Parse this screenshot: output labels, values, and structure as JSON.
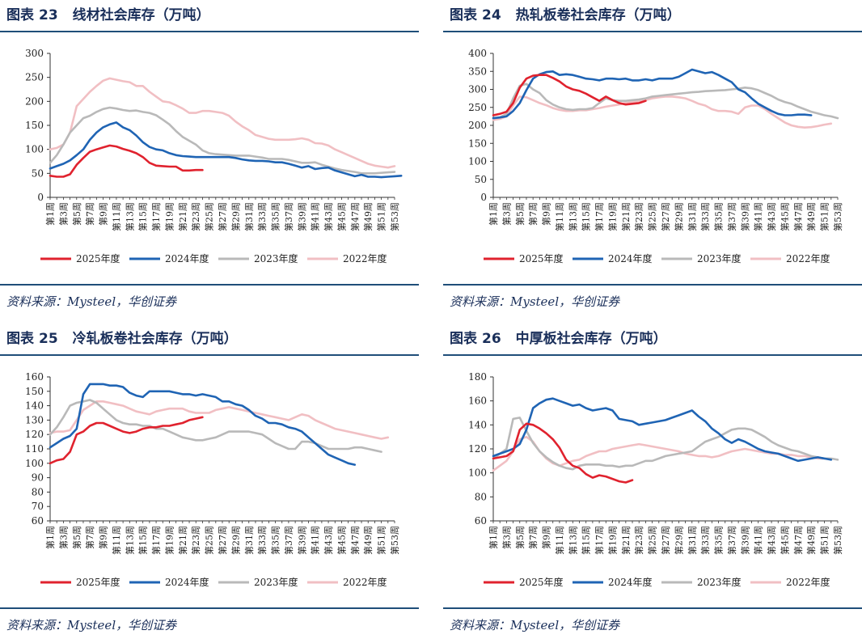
{
  "series_names": [
    "2025年度",
    "2024年度",
    "2023年度",
    "2022年度"
  ],
  "series_colors": [
    "#e0222e",
    "#1f64b4",
    "#b9b9b9",
    "#f1bfc3"
  ],
  "x_tick_labels": [
    "第1周",
    "第3周",
    "第5周",
    "第7周",
    "第9周",
    "第11周",
    "第13周",
    "第15周",
    "第17周",
    "第19周",
    "第21周",
    "第23周",
    "第25周",
    "第27周",
    "第29周",
    "第31周",
    "第33周",
    "第35周",
    "第37周",
    "第39周",
    "第41周",
    "第43周",
    "第45周",
    "第47周",
    "第49周",
    "第51周",
    "第53周"
  ],
  "panels": [
    {
      "label": "图表",
      "number": "23",
      "title": "线材社会库存（万吨）",
      "source": "资料来源：Mysteel，华创证券"
    },
    {
      "label": "图表",
      "number": "24",
      "title": "热轧板卷社会库存（万吨）",
      "source": "资料来源：Mysteel，华创证券"
    },
    {
      "label": "图表",
      "number": "25",
      "title": "冷轧板卷社会库存（万吨）",
      "source": "资料来源：Mysteel，华创证券"
    },
    {
      "label": "图表",
      "number": "26",
      "title": "中厚板社会库存（万吨）",
      "source": "资料来源：Mysteel，华创证券"
    }
  ],
  "chart_data": [
    {
      "type": "line",
      "title": "线材社会库存（万吨）",
      "x": "周 1-53",
      "ylim": [
        0,
        300
      ],
      "yticks": [
        0,
        50,
        100,
        150,
        200,
        250,
        300
      ],
      "series": [
        {
          "name": "2025年度",
          "values": [
            45,
            43,
            43,
            48,
            68,
            82,
            95,
            100,
            104,
            108,
            106,
            101,
            97,
            92,
            84,
            72,
            66,
            65,
            64,
            64,
            56,
            56,
            57,
            57
          ]
        },
        {
          "name": "2024年度",
          "values": [
            60,
            65,
            70,
            77,
            88,
            100,
            120,
            135,
            146,
            152,
            156,
            146,
            140,
            129,
            115,
            105,
            100,
            98,
            92,
            88,
            86,
            85,
            84,
            84,
            84,
            84,
            84,
            84,
            82,
            79,
            77,
            76,
            76,
            75,
            73,
            73,
            70,
            66,
            62,
            65,
            59,
            61,
            62,
            56,
            52,
            48,
            44,
            47,
            43,
            43,
            42,
            43,
            44,
            45
          ]
        },
        {
          "name": "2023年度",
          "values": [
            72,
            88,
            110,
            135,
            150,
            165,
            170,
            178,
            184,
            187,
            185,
            182,
            180,
            181,
            178,
            176,
            171,
            162,
            152,
            138,
            126,
            118,
            110,
            98,
            92,
            90,
            89,
            88,
            87,
            87,
            87,
            85,
            83,
            80,
            80,
            80,
            78,
            75,
            72,
            72,
            73,
            68,
            64,
            60,
            57,
            55,
            53,
            50,
            50,
            50,
            51,
            52,
            53
          ]
        },
        {
          "name": "2022年度",
          "values": [
            100,
            103,
            110,
            135,
            190,
            205,
            220,
            232,
            243,
            248,
            245,
            242,
            240,
            232,
            232,
            220,
            210,
            200,
            198,
            192,
            185,
            176,
            176,
            180,
            180,
            178,
            176,
            170,
            158,
            148,
            140,
            130,
            126,
            122,
            120,
            120,
            120,
            121,
            123,
            120,
            113,
            112,
            108,
            100,
            94,
            88,
            82,
            76,
            70,
            66,
            64,
            62,
            65
          ]
        }
      ]
    },
    {
      "type": "line",
      "title": "热轧板卷社会库存（万吨）",
      "x": "周 1-53",
      "ylim": [
        0,
        400
      ],
      "yticks": [
        0,
        50,
        100,
        150,
        200,
        250,
        300,
        350,
        400
      ],
      "series": [
        {
          "name": "2025年度",
          "values": [
            228,
            232,
            238,
            262,
            305,
            330,
            338,
            340,
            340,
            332,
            322,
            308,
            300,
            296,
            288,
            278,
            268,
            280,
            270,
            262,
            258,
            260,
            262,
            268
          ]
        },
        {
          "name": "2024年度",
          "values": [
            220,
            222,
            225,
            240,
            262,
            298,
            330,
            342,
            348,
            350,
            340,
            342,
            340,
            335,
            330,
            328,
            325,
            330,
            330,
            328,
            330,
            325,
            325,
            328,
            325,
            330,
            330,
            330,
            335,
            345,
            355,
            350,
            345,
            348,
            340,
            330,
            320,
            300,
            292,
            275,
            260,
            250,
            240,
            232,
            228,
            228,
            230,
            230,
            228
          ]
        },
        {
          "name": "2023年度",
          "values": [
            220,
            222,
            232,
            275,
            310,
            315,
            300,
            290,
            270,
            258,
            250,
            245,
            243,
            245,
            245,
            248,
            262,
            275,
            270,
            268,
            268,
            270,
            272,
            275,
            280,
            282,
            284,
            286,
            288,
            290,
            292,
            293,
            295,
            296,
            297,
            298,
            300,
            302,
            305,
            303,
            298,
            290,
            282,
            272,
            265,
            260,
            252,
            245,
            238,
            233,
            228,
            225,
            220
          ]
        },
        {
          "name": "2022年度",
          "values": [
            215,
            218,
            225,
            255,
            280,
            278,
            270,
            262,
            256,
            248,
            243,
            240,
            240,
            242,
            242,
            245,
            248,
            252,
            255,
            258,
            262,
            265,
            268,
            270,
            275,
            278,
            280,
            280,
            278,
            275,
            268,
            260,
            255,
            245,
            240,
            240,
            238,
            232,
            250,
            255,
            255,
            245,
            232,
            220,
            208,
            200,
            196,
            194,
            195,
            198,
            202,
            205
          ]
        }
      ]
    },
    {
      "type": "line",
      "title": "冷轧板卷社会库存（万吨）",
      "x": "周 1-53",
      "ylim": [
        60,
        160
      ],
      "yticks": [
        60,
        70,
        80,
        90,
        100,
        110,
        120,
        130,
        140,
        150,
        160
      ],
      "series": [
        {
          "name": "2025年度",
          "values": [
            100,
            102,
            103,
            108,
            120,
            122,
            126,
            128,
            128,
            126,
            124,
            122,
            121,
            122,
            124,
            125,
            125,
            126,
            126,
            127,
            128,
            130,
            131,
            132
          ]
        },
        {
          "name": "2024年度",
          "values": [
            111,
            114,
            117,
            119,
            124,
            148,
            155,
            155,
            155,
            154,
            154,
            153,
            149,
            147,
            146,
            150,
            150,
            150,
            150,
            149,
            148,
            148,
            147,
            148,
            147,
            146,
            143,
            143,
            141,
            140,
            137,
            133,
            131,
            128,
            128,
            127,
            125,
            124,
            122,
            118,
            114,
            110,
            106,
            104,
            102,
            100,
            99
          ]
        },
        {
          "name": "2023年度",
          "values": [
            120,
            125,
            132,
            140,
            142,
            143,
            144,
            142,
            138,
            134,
            130,
            128,
            127,
            127,
            126,
            126,
            124,
            124,
            122,
            120,
            118,
            117,
            116,
            116,
            117,
            118,
            120,
            122,
            122,
            122,
            122,
            121,
            120,
            117,
            114,
            112,
            110,
            110,
            115,
            115,
            114,
            112,
            110,
            110,
            110,
            110,
            111,
            111,
            110,
            109,
            108
          ]
        },
        {
          "name": "2022年度",
          "values": [
            121,
            122,
            122,
            123,
            130,
            137,
            140,
            143,
            143,
            142,
            141,
            140,
            138,
            136,
            135,
            134,
            136,
            137,
            138,
            138,
            138,
            136,
            135,
            135,
            135,
            137,
            138,
            139,
            138,
            137,
            136,
            135,
            134,
            133,
            132,
            131,
            130,
            132,
            134,
            133,
            130,
            128,
            126,
            124,
            123,
            122,
            121,
            120,
            119,
            118,
            117,
            118
          ]
        }
      ]
    },
    {
      "type": "line",
      "title": "中厚板社会库存（万吨）",
      "x": "周 1-53",
      "ylim": [
        60,
        180
      ],
      "yticks": [
        60,
        80,
        100,
        120,
        140,
        160,
        180
      ],
      "series": [
        {
          "name": "2025年度",
          "values": [
            112,
            113,
            114,
            118,
            136,
            141,
            140,
            137,
            133,
            128,
            121,
            111,
            106,
            104,
            99,
            96,
            98,
            97,
            95,
            93,
            92,
            94
          ]
        },
        {
          "name": "2024年度",
          "values": [
            114,
            116,
            118,
            120,
            124,
            136,
            154,
            158,
            161,
            162,
            160,
            158,
            156,
            157,
            154,
            152,
            153,
            154,
            152,
            145,
            144,
            143,
            140,
            141,
            142,
            143,
            144,
            146,
            148,
            150,
            152,
            147,
            143,
            137,
            133,
            128,
            125,
            128,
            126,
            123,
            120,
            118,
            117,
            116,
            114,
            112,
            110,
            111,
            112,
            113,
            112,
            111
          ]
        },
        {
          "name": "2023年度",
          "values": [
            112,
            116,
            120,
            145,
            146,
            135,
            125,
            118,
            113,
            109,
            106,
            104,
            103,
            106,
            107,
            107,
            107,
            106,
            106,
            105,
            106,
            106,
            108,
            110,
            110,
            112,
            114,
            115,
            116,
            117,
            118,
            122,
            126,
            128,
            130,
            133,
            136,
            137,
            137,
            136,
            133,
            130,
            126,
            123,
            121,
            119,
            118,
            116,
            114,
            113,
            112,
            112,
            111
          ]
        },
        {
          "name": "2022年度",
          "values": [
            102,
            106,
            110,
            118,
            128,
            130,
            126,
            118,
            112,
            108,
            106,
            108,
            110,
            111,
            114,
            116,
            118,
            118,
            120,
            121,
            122,
            123,
            124,
            123,
            122,
            121,
            120,
            119,
            118,
            116,
            115,
            114,
            114,
            113,
            114,
            116,
            118,
            119,
            120,
            119,
            118,
            117,
            116,
            116,
            115,
            115,
            114,
            114,
            113,
            112,
            112
          ]
        }
      ]
    }
  ]
}
